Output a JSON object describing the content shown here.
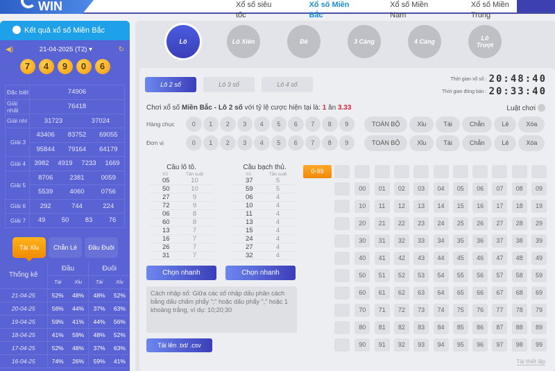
{
  "header": {
    "logo": "WIN",
    "nav": [
      "Xổ số siêu tốc",
      "Xổ số Miền Bắc",
      "Xổ số Miền Nam",
      "Xổ số Miền Trung"
    ],
    "active_nav": 1
  },
  "results": {
    "title": "Kết quả xổ số Miền Bắc",
    "date": "21-04-2025 (T2)",
    "balls": [
      "7",
      "4",
      "9",
      "0",
      "6"
    ],
    "prizes": [
      {
        "label": "Đặc biệt",
        "rows": [
          [
            "74906"
          ]
        ]
      },
      {
        "label": "Giải nhất",
        "rows": [
          [
            "76418"
          ]
        ]
      },
      {
        "label": "Giải nhì",
        "rows": [
          [
            "31723",
            "37024"
          ]
        ]
      },
      {
        "label": "Giải 3",
        "rows": [
          [
            "43406",
            "83752",
            "69055"
          ],
          [
            "95844",
            "79164",
            "64179"
          ]
        ]
      },
      {
        "label": "Giải 4",
        "rows": [
          [
            "3982",
            "4919",
            "7233",
            "1669"
          ]
        ]
      },
      {
        "label": "Giải 5",
        "rows": [
          [
            "8706",
            "2381",
            "0059"
          ],
          [
            "5539",
            "4060",
            "0756"
          ]
        ]
      },
      {
        "label": "Giải 6",
        "rows": [
          [
            "292",
            "744",
            "224"
          ]
        ]
      },
      {
        "label": "Giải 7",
        "rows": [
          [
            "49",
            "50",
            "83",
            "76"
          ]
        ]
      }
    ]
  },
  "stats": {
    "tabs": [
      "Tài Xỉu",
      "Chẵn Lẻ",
      "Đầu Đuôi"
    ],
    "active_tab": 0,
    "title": "Thống kê",
    "groups": [
      "Đầu",
      "Đuôi"
    ],
    "sub": [
      "Tài",
      "Xỉu",
      "Tài",
      "Xỉu"
    ],
    "rows": [
      [
        "21-04-25",
        "52%",
        "48%",
        "48%",
        "52%"
      ],
      [
        "20-04-25",
        "56%",
        "44%",
        "37%",
        "63%"
      ],
      [
        "19-04-25",
        "59%",
        "41%",
        "44%",
        "56%"
      ],
      [
        "18-04-25",
        "41%",
        "59%",
        "48%",
        "52%"
      ],
      [
        "17-04-25",
        "52%",
        "48%",
        "37%",
        "63%"
      ],
      [
        "16-04-25",
        "74%",
        "26%",
        "59%",
        "41%"
      ]
    ]
  },
  "game_types": [
    "Lô",
    "Lô Xiên",
    "Đề",
    "3 Càng",
    "4 Càng",
    "Lô Trượt"
  ],
  "active_game": 0,
  "sub_types": [
    "Lô 2 số",
    "Lô 3 số",
    "Lô 4 số"
  ],
  "active_sub": 0,
  "times": {
    "draw_label": "Thời gian xổ số :",
    "draw": "20:48:40",
    "close_label": "Thời gian đóng bán :",
    "close": "20:33:40"
  },
  "info": {
    "pre": "Chơi xổ số ",
    "bold": "Miền Bắc - Lô 2 số",
    "mid": " với tỷ lệ cược hiện tại là:  ",
    "odds1": "1",
    "an": " ăn ",
    "odds2": "3.33",
    "rules": "Luật chơi"
  },
  "picker": {
    "rows": [
      "Hàng chục",
      "Đơn vị"
    ],
    "digits": [
      "0",
      "1",
      "2",
      "3",
      "4",
      "5",
      "6",
      "7",
      "8",
      "9"
    ],
    "actions": [
      "TOÀN BỘ",
      "Xỉu",
      "Tài",
      "Chẵn",
      "Lẻ",
      "Xóa"
    ]
  },
  "cau_lo": {
    "title": "Cầu lô tô.",
    "h1": "Số",
    "h2": "Tần suất",
    "rows": [
      [
        "05",
        "10"
      ],
      [
        "50",
        "10"
      ],
      [
        "27",
        "9"
      ],
      [
        "72",
        "9"
      ],
      [
        "06",
        "8"
      ],
      [
        "60",
        "8"
      ],
      [
        "13",
        "7"
      ],
      [
        "16",
        "7"
      ],
      [
        "26",
        "7"
      ],
      [
        "31",
        "7"
      ]
    ],
    "button": "Chọn nhanh"
  },
  "cau_bach": {
    "title": "Cầu bạch thủ.",
    "h1": "Số",
    "h2": "Tần suất",
    "rows": [
      [
        "37",
        "5"
      ],
      [
        "59",
        "5"
      ],
      [
        "06",
        "4"
      ],
      [
        "10",
        "4"
      ],
      [
        "11",
        "4"
      ],
      [
        "13",
        "4"
      ],
      [
        "15",
        "4"
      ],
      [
        "24",
        "4"
      ],
      [
        "27",
        "4"
      ],
      [
        "32",
        "4"
      ]
    ],
    "button": "Chọn nhanh"
  },
  "input_hint": "Cách nhập số: Giữa các số nhập dấu phân cách bằng dấu chấm phẩy \";\" hoặc dấu phẩy \",\" hoặc 1 khoảng trắng, ví dụ: 10;20;30",
  "upload": "Tải lên .txt/ .csv",
  "range": "0-99",
  "reset": "Tải thiết lập"
}
